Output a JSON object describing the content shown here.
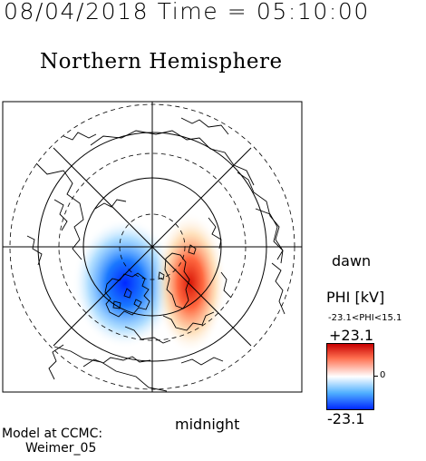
{
  "header": {
    "datetime": "08/04/2018 Time = 05:10:00",
    "title": "Northern Hemisphere"
  },
  "map": {
    "local_time_labels": {
      "dawn": "dawn",
      "midnight": "midnight"
    },
    "potential_pattern": {
      "negative_cell": {
        "peak_kv": -23.1,
        "color": "#0028ff"
      },
      "positive_cell": {
        "peak_kv": 15.1,
        "color": "#c80000"
      }
    }
  },
  "colorbar": {
    "label": "PHI [kV]",
    "range_text": "-23.1<PHI<15.1",
    "max_label": "+23.1",
    "zero_label": "0",
    "min_label": "-23.1",
    "colors": {
      "max": "#c80000",
      "mid": "#ffffff",
      "min": "#0028ff"
    }
  },
  "credit": {
    "line1": "Model at CCMC:",
    "line2": "Weimer_05"
  }
}
